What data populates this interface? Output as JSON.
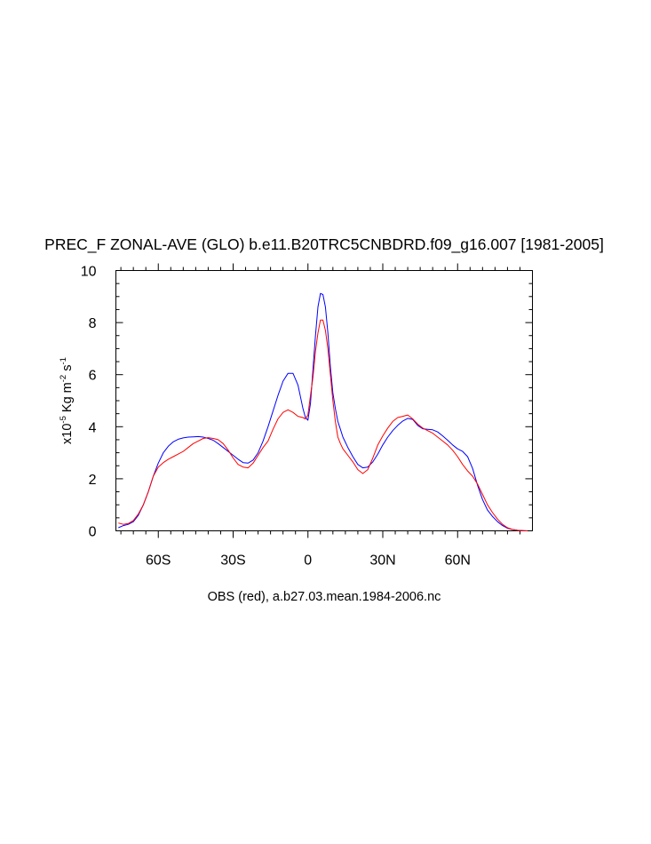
{
  "chart_data": {
    "type": "line",
    "title": "PREC_F ZONAL-AVE (GLO) b.e11.B20TRC5CNBDRD.f09_g16.007 [1981-2005]",
    "xlabel": "OBS (red), a.b27.03.mean.1984-2006.nc",
    "ylabel": {
      "prefix": "x10",
      "exp": "-5",
      "unit1": " Kg m",
      "exp2": "-2",
      "unit2": " s",
      "exp3": "-1"
    },
    "xlim": [
      -77,
      90
    ],
    "ylim": [
      0,
      10
    ],
    "x_ticks": [
      {
        "value": -60,
        "label": "60S"
      },
      {
        "value": -30,
        "label": "30S"
      },
      {
        "value": 0,
        "label": "0"
      },
      {
        "value": 30,
        "label": "30N"
      },
      {
        "value": 60,
        "label": "60N"
      }
    ],
    "x_minor_ticks": [
      -75,
      -70,
      -65,
      -55,
      -50,
      -45,
      -40,
      -35,
      -25,
      -20,
      -15,
      -10,
      -5,
      5,
      10,
      15,
      20,
      25,
      35,
      40,
      45,
      50,
      55,
      65,
      70,
      75,
      80,
      85
    ],
    "y_ticks": [
      0,
      2,
      4,
      6,
      8,
      10
    ],
    "y_minor_ticks": [
      0.5,
      1,
      1.5,
      2.5,
      3,
      3.5,
      4.5,
      5,
      5.5,
      6.5,
      7,
      7.5,
      8.5,
      9,
      9.5
    ],
    "series": [
      {
        "color": "#0000ff",
        "x": [
          -76,
          -74,
          -72,
          -70,
          -68,
          -66,
          -64,
          -62,
          -60,
          -58,
          -56,
          -54,
          -52,
          -50,
          -48,
          -46,
          -44,
          -42,
          -40,
          -38,
          -36,
          -34,
          -32,
          -30,
          -28,
          -26,
          -24,
          -22,
          -20,
          -18,
          -16,
          -14,
          -12,
          -10,
          -8,
          -6,
          -4,
          -2,
          -1,
          0,
          1,
          2,
          3,
          4,
          5,
          6,
          7,
          8,
          9,
          10,
          11,
          12,
          13,
          14,
          16,
          18,
          20,
          22,
          24,
          26,
          28,
          30,
          32,
          34,
          36,
          38,
          40,
          42,
          44,
          46,
          48,
          50,
          52,
          54,
          56,
          58,
          60,
          62,
          64,
          66,
          68,
          70,
          72,
          74,
          76,
          78,
          80,
          82,
          84,
          86,
          88
        ],
        "y": [
          0.12,
          0.2,
          0.25,
          0.35,
          0.6,
          1.0,
          1.5,
          2.1,
          2.6,
          3.0,
          3.25,
          3.42,
          3.52,
          3.57,
          3.6,
          3.61,
          3.62,
          3.6,
          3.55,
          3.48,
          3.35,
          3.2,
          3.05,
          2.9,
          2.75,
          2.62,
          2.6,
          2.72,
          3.0,
          3.45,
          4.0,
          4.6,
          5.2,
          5.75,
          6.05,
          6.05,
          5.6,
          4.7,
          4.35,
          4.25,
          4.9,
          6.2,
          7.5,
          8.6,
          9.12,
          9.08,
          8.6,
          7.6,
          6.3,
          5.3,
          4.7,
          4.2,
          3.9,
          3.6,
          3.2,
          2.85,
          2.55,
          2.42,
          2.45,
          2.65,
          2.95,
          3.3,
          3.6,
          3.85,
          4.05,
          4.22,
          4.32,
          4.28,
          4.05,
          3.92,
          3.9,
          3.88,
          3.8,
          3.65,
          3.48,
          3.3,
          3.15,
          3.05,
          2.85,
          2.4,
          1.75,
          1.2,
          0.8,
          0.55,
          0.35,
          0.2,
          0.1,
          0.05,
          0.02,
          0.01,
          0.0
        ]
      },
      {
        "color": "#ff0000",
        "x": [
          -76,
          -74,
          -72,
          -70,
          -68,
          -66,
          -64,
          -62,
          -60,
          -58,
          -56,
          -54,
          -52,
          -50,
          -48,
          -46,
          -44,
          -42,
          -40,
          -38,
          -36,
          -34,
          -32,
          -30,
          -28,
          -26,
          -24,
          -22,
          -20,
          -18,
          -16,
          -14,
          -12,
          -10,
          -8,
          -6,
          -4,
          -2,
          -1,
          0,
          1,
          2,
          3,
          4,
          5,
          6,
          7,
          8,
          9,
          10,
          11,
          12,
          13,
          14,
          16,
          18,
          20,
          22,
          24,
          26,
          28,
          30,
          32,
          34,
          36,
          38,
          40,
          42,
          44,
          46,
          48,
          50,
          52,
          54,
          56,
          58,
          60,
          62,
          64,
          66,
          68,
          70,
          72,
          74,
          76,
          78,
          80,
          82,
          84,
          86,
          88
        ],
        "y": [
          0.3,
          0.25,
          0.28,
          0.4,
          0.65,
          1.0,
          1.5,
          2.1,
          2.45,
          2.62,
          2.75,
          2.85,
          2.95,
          3.05,
          3.2,
          3.35,
          3.45,
          3.55,
          3.58,
          3.55,
          3.5,
          3.35,
          3.1,
          2.8,
          2.55,
          2.45,
          2.42,
          2.6,
          2.9,
          3.2,
          3.45,
          3.9,
          4.3,
          4.55,
          4.65,
          4.55,
          4.4,
          4.35,
          4.3,
          4.45,
          5.2,
          5.9,
          6.9,
          7.6,
          8.1,
          8.1,
          7.7,
          7.0,
          6.0,
          5.0,
          4.2,
          3.6,
          3.35,
          3.15,
          2.9,
          2.65,
          2.35,
          2.2,
          2.35,
          2.8,
          3.3,
          3.65,
          3.95,
          4.2,
          4.35,
          4.4,
          4.45,
          4.3,
          4.1,
          3.95,
          3.85,
          3.75,
          3.6,
          3.45,
          3.3,
          3.1,
          2.85,
          2.55,
          2.3,
          2.1,
          1.8,
          1.4,
          1.0,
          0.7,
          0.45,
          0.25,
          0.12,
          0.05,
          0.02,
          0.01,
          0.0
        ]
      }
    ],
    "grid": false
  }
}
